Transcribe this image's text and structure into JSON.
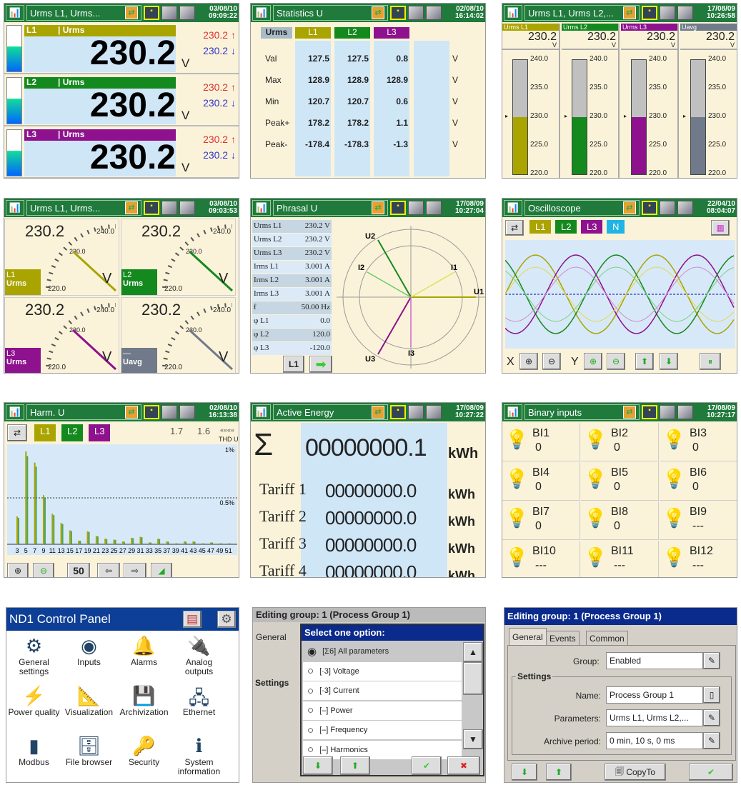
{
  "colors": {
    "l1": "#aaa400",
    "l2": "#14891e",
    "l3": "#8e118e",
    "n": "#1eb4e6",
    "avg": "#707a8a",
    "header": "#1f7a3c",
    "dialog": "#0a2a8c"
  },
  "urms_panel": {
    "title": "Urms L1, Urms...",
    "date": "03/08/10",
    "time": "09:09:22",
    "rows": [
      {
        "phase": "L1",
        "param": "Urms",
        "value": "230.2",
        "unit": "V",
        "max": "230.2",
        "min": "230.2",
        "color": "l1"
      },
      {
        "phase": "L2",
        "param": "Urms",
        "value": "230.2",
        "unit": "V",
        "max": "230.2",
        "min": "230.2",
        "color": "l2"
      },
      {
        "phase": "L3",
        "param": "Urms",
        "value": "230.2",
        "unit": "V",
        "max": "230.2",
        "min": "230.2",
        "color": "l3"
      }
    ]
  },
  "stats_panel": {
    "title": "Statistics U",
    "date": "02/08/10",
    "time": "16:14:02",
    "headers": [
      "Urms",
      "L1",
      "L2",
      "L3"
    ],
    "rows": [
      {
        "label": "Val",
        "values": [
          "127.5",
          "127.5",
          "0.8"
        ],
        "unit": "V"
      },
      {
        "label": "Max",
        "values": [
          "128.9",
          "128.9",
          "128.9"
        ],
        "unit": "V"
      },
      {
        "label": "Min",
        "values": [
          "120.7",
          "120.7",
          "0.6"
        ],
        "unit": "V"
      },
      {
        "label": "Peak+",
        "values": [
          "178.2",
          "178.2",
          "1.1"
        ],
        "unit": "V"
      },
      {
        "label": "Peak-",
        "values": [
          "-178.4",
          "-178.3",
          "-1.3"
        ],
        "unit": "V"
      }
    ]
  },
  "bars_panel": {
    "title": "Urms L1, Urms L2,...",
    "date": "17/08/09",
    "time": "10:26:58",
    "scale": [
      "240.0",
      "235.0",
      "230.0",
      "225.0",
      "220.0"
    ],
    "range": [
      220,
      240
    ],
    "columns": [
      {
        "label": "Urms L1",
        "value": "230.2",
        "unit": "V",
        "level": 230,
        "color": "l1"
      },
      {
        "label": "Urms L2",
        "value": "230.2",
        "unit": "V",
        "level": 230,
        "color": "l2"
      },
      {
        "label": "Urms L3",
        "value": "230.2",
        "unit": "V",
        "level": 230,
        "color": "l3"
      },
      {
        "label": "Uavg",
        "value": "230.2",
        "unit": "V",
        "level": 230,
        "color": "avg"
      }
    ]
  },
  "gauge_panel": {
    "title": "Urms L1, Urms...",
    "date": "03/08/10",
    "time": "09:03:53",
    "max": "240.0",
    "mid": "230.0",
    "min": "220.0",
    "gauges": [
      {
        "value": "230.2",
        "phase": "L1",
        "param": "Urms",
        "unit": "V",
        "color": "l1"
      },
      {
        "value": "230.2",
        "phase": "L2",
        "param": "Urms",
        "unit": "V",
        "color": "l2"
      },
      {
        "value": "230.2",
        "phase": "L3",
        "param": "Urms",
        "unit": "V",
        "color": "l3"
      },
      {
        "value": "230.2",
        "phase": "—",
        "param": "Uavg",
        "unit": "V",
        "color": "avg"
      }
    ]
  },
  "phasor_panel": {
    "title": "Phrasal U",
    "date": "17/08/09",
    "time": "10:27:04",
    "rows": [
      {
        "label": "Urms L1",
        "value": "230.2 V"
      },
      {
        "label": "Urms L2",
        "value": "230.2 V"
      },
      {
        "label": "Urms L3",
        "value": "230.2 V"
      },
      {
        "label": "Irms L1",
        "value": "3.001 A"
      },
      {
        "label": "Irms L2",
        "value": "3.001 A"
      },
      {
        "label": "Irms L3",
        "value": "3.001 A"
      },
      {
        "label": "f",
        "value": "50.00 Hz"
      },
      {
        "label": "φ L1",
        "value": "0.0"
      },
      {
        "label": "φ L2",
        "value": "120.0"
      },
      {
        "label": "φ L3",
        "value": "-120.0"
      }
    ],
    "button": "L1",
    "vectors": [
      "U1",
      "U2",
      "U3",
      "I1",
      "I2",
      "I3"
    ]
  },
  "scope_panel": {
    "title": "Oscilloscope",
    "date": "22/04/10",
    "time": "08:04:07",
    "channels": [
      "L1",
      "L2",
      "L3",
      "N"
    ],
    "x_label": "X",
    "y_label": "Y"
  },
  "harm_panel": {
    "title": "Harm. U",
    "date": "02/08/10",
    "time": "16:13:38",
    "channels": [
      "L1",
      "L2",
      "L3"
    ],
    "thd_values": [
      "1.7",
      "1.6"
    ],
    "thd_arrows": "««««",
    "thd_label": "THD U",
    "y_top": "1%",
    "y_mid": "0.5%",
    "zoom_value": "50",
    "chart_data": {
      "type": "bar",
      "xlabel": "",
      "ylabel": "",
      "ylim": [
        0,
        1
      ],
      "categories": [
        3,
        5,
        7,
        9,
        11,
        13,
        15,
        17,
        19,
        21,
        23,
        25,
        27,
        29,
        31,
        33,
        35,
        37,
        39,
        41,
        43,
        45,
        47,
        49,
        51
      ],
      "values": [
        0.3,
        1.0,
        0.88,
        0.53,
        0.33,
        0.23,
        0.15,
        0.04,
        0.14,
        0.09,
        0.06,
        0.05,
        0.03,
        0.07,
        0.08,
        0.02,
        0.06,
        0.03,
        0.01,
        0.03,
        0.03,
        0.01,
        0.02,
        0.01,
        0.01
      ]
    }
  },
  "energy_panel": {
    "title": "Active Energy",
    "date": "17/08/09",
    "time": "10:27:22",
    "total_symbol": "Σ",
    "total": "00000000.1",
    "unit": "kWh",
    "tariffs": [
      {
        "label": "Tariff 1",
        "value": "00000000.0"
      },
      {
        "label": "Tariff 2",
        "value": "00000000.0"
      },
      {
        "label": "Tariff 3",
        "value": "00000000.0"
      },
      {
        "label": "Tariff 4",
        "value": "00000000.0"
      }
    ]
  },
  "binary_panel": {
    "title": "Binary inputs",
    "date": "17/08/09",
    "time": "10:27:17",
    "inputs": [
      {
        "name": "BI1",
        "value": "0"
      },
      {
        "name": "BI2",
        "value": "0"
      },
      {
        "name": "BI3",
        "value": "0"
      },
      {
        "name": "BI4",
        "value": "0"
      },
      {
        "name": "BI5",
        "value": "0"
      },
      {
        "name": "BI6",
        "value": "0"
      },
      {
        "name": "BI7",
        "value": "0"
      },
      {
        "name": "BI8",
        "value": "0"
      },
      {
        "name": "BI9",
        "value": "---"
      },
      {
        "name": "BI10",
        "value": "---"
      },
      {
        "name": "BI11",
        "value": "---"
      },
      {
        "name": "BI12",
        "value": "---"
      }
    ]
  },
  "control_panel": {
    "title": "ND1 Control Panel",
    "items": [
      {
        "label": "General settings",
        "icon": "gears-icon"
      },
      {
        "label": "Inputs",
        "icon": "inputs-icon"
      },
      {
        "label": "Alarms",
        "icon": "bell-icon"
      },
      {
        "label": "Analog outputs",
        "icon": "plug-icon"
      },
      {
        "label": "Power quality",
        "icon": "power-quality-icon"
      },
      {
        "label": "Visualization",
        "icon": "visualization-icon"
      },
      {
        "label": "Archivization",
        "icon": "floppy-icon"
      },
      {
        "label": "Ethernet",
        "icon": "network-icon"
      },
      {
        "label": "Modbus",
        "icon": "modbus-icon"
      },
      {
        "label": "File browser",
        "icon": "file-browser-icon"
      },
      {
        "label": "Security",
        "icon": "keys-icon"
      },
      {
        "label": "System information",
        "icon": "info-icon"
      }
    ]
  },
  "select_dialog": {
    "background_title": "Editing group: 1 (Process Group 1)",
    "background_tab": "General",
    "background_section": "Settings",
    "title": "Select one option:",
    "options": [
      {
        "label": "[Σ6] All parameters",
        "selected": true
      },
      {
        "label": "[·3] Voltage",
        "selected": false
      },
      {
        "label": "[·3] Current",
        "selected": false
      },
      {
        "label": "[–] Power",
        "selected": false
      },
      {
        "label": "[–] Frequency",
        "selected": false
      },
      {
        "label": "[–] Harmonics",
        "selected": false
      }
    ]
  },
  "edit_group": {
    "title": "Editing group: 1 (Process Group 1)",
    "tabs": [
      "General",
      "Events",
      "Common"
    ],
    "active_tab": "General",
    "group_label": "Group:",
    "group_value": "Enabled",
    "section": "Settings",
    "fields": [
      {
        "label": "Name:",
        "value": "Process Group 1"
      },
      {
        "label": "Parameters:",
        "value": "Urms L1, Urms L2,..."
      },
      {
        "label": "Archive period:",
        "value": "0 min, 10 s, 0 ms"
      }
    ],
    "copy_label": "CopyTo"
  }
}
